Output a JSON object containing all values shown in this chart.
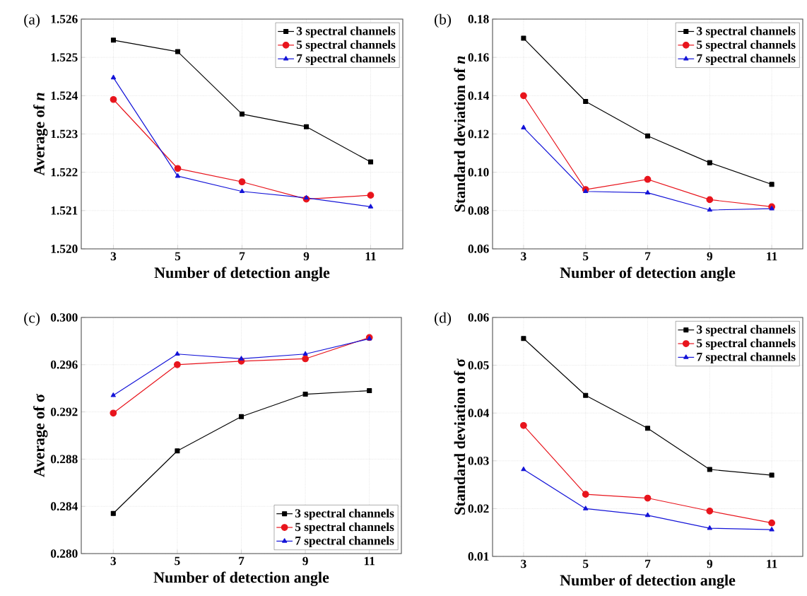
{
  "chart_data": [
    {
      "type": "line",
      "annotations": [
        "(a)"
      ],
      "xlabel": "Number of detection angle",
      "ylabel": "Average of *n*",
      "x": [
        3,
        5,
        7,
        9,
        11
      ],
      "xlim": [
        2,
        12
      ],
      "xticks": [
        3,
        5,
        7,
        9,
        11
      ],
      "ylim": [
        1.52,
        1.526
      ],
      "yticks": [
        {
          "value": 1.52,
          "label": "1.520"
        },
        {
          "value": 1.521,
          "label": "1.521"
        },
        {
          "value": 1.522,
          "label": "1.522"
        },
        {
          "value": 1.523,
          "label": "1.523"
        },
        {
          "value": 1.524,
          "label": "1.524"
        },
        {
          "value": 1.525,
          "label": "1.525"
        },
        {
          "value": 1.526,
          "label": "1.526"
        }
      ],
      "grid": true,
      "legend": "top right",
      "series": [
        {
          "name": "3 spectral channels",
          "color": "#000000",
          "marker": "square",
          "values": [
            1.52545,
            1.52515,
            1.52352,
            1.52319,
            1.52227
          ]
        },
        {
          "name": "5 spectral channels",
          "color": "#e8141c",
          "marker": "circle",
          "values": [
            1.5239,
            1.5221,
            1.52175,
            1.5213,
            1.5214
          ]
        },
        {
          "name": "7 spectral channels",
          "color": "#1414d8",
          "marker": "triangle",
          "values": [
            1.52447,
            1.5219,
            1.5215,
            1.52133,
            1.5211
          ]
        }
      ]
    },
    {
      "type": "line",
      "annotations": [
        "(b)"
      ],
      "xlabel": "Number of detection angle",
      "ylabel": "Standard deviation of *n*",
      "x": [
        3,
        5,
        7,
        9,
        11
      ],
      "xlim": [
        2,
        12
      ],
      "xticks": [
        3,
        5,
        7,
        9,
        11
      ],
      "ylim": [
        0.06,
        0.18
      ],
      "yticks": [
        {
          "value": 0.06,
          "label": "0.06"
        },
        {
          "value": 0.08,
          "label": "0.08"
        },
        {
          "value": 0.1,
          "label": "0.10"
        },
        {
          "value": 0.12,
          "label": "0.12"
        },
        {
          "value": 0.14,
          "label": "0.14"
        },
        {
          "value": 0.16,
          "label": "0.16"
        },
        {
          "value": 0.18,
          "label": "0.18"
        }
      ],
      "grid": true,
      "legend": "top right",
      "series": [
        {
          "name": "3 spectral channels",
          "color": "#000000",
          "marker": "square",
          "values": [
            0.17,
            0.137,
            0.119,
            0.105,
            0.0937
          ]
        },
        {
          "name": "5 spectral channels",
          "color": "#e8141c",
          "marker": "circle",
          "values": [
            0.14,
            0.091,
            0.0963,
            0.0857,
            0.082
          ]
        },
        {
          "name": "7 spectral channels",
          "color": "#1414d8",
          "marker": "triangle",
          "values": [
            0.1233,
            0.09,
            0.0893,
            0.0803,
            0.081
          ]
        }
      ]
    },
    {
      "type": "line",
      "annotations": [
        "(c)"
      ],
      "xlabel": "Number of detection angle",
      "ylabel": "Average of σ",
      "x": [
        3,
        5,
        7,
        9,
        11
      ],
      "xlim": [
        2,
        12
      ],
      "xticks": [
        3,
        5,
        7,
        9,
        11
      ],
      "ylim": [
        0.28,
        0.3
      ],
      "yticks": [
        {
          "value": 0.28,
          "label": "0.280"
        },
        {
          "value": 0.284,
          "label": "0.284"
        },
        {
          "value": 0.288,
          "label": "0.288"
        },
        {
          "value": 0.292,
          "label": "0.292"
        },
        {
          "value": 0.296,
          "label": "0.296"
        },
        {
          "value": 0.3,
          "label": "0.300"
        }
      ],
      "grid": true,
      "legend": "bottom right",
      "series": [
        {
          "name": "3 spectral channels",
          "color": "#000000",
          "marker": "square",
          "values": [
            0.2834,
            0.2887,
            0.2916,
            0.2935,
            0.2938
          ]
        },
        {
          "name": "5 spectral channels",
          "color": "#e8141c",
          "marker": "circle",
          "values": [
            0.2919,
            0.296,
            0.2963,
            0.2965,
            0.2983
          ]
        },
        {
          "name": "7 spectral channels",
          "color": "#1414d8",
          "marker": "triangle",
          "values": [
            0.2934,
            0.2969,
            0.2965,
            0.2969,
            0.2982
          ]
        }
      ]
    },
    {
      "type": "line",
      "annotations": [
        "(d)"
      ],
      "xlabel": "Number of detection angle",
      "ylabel": "Standard deviation of σ",
      "x": [
        3,
        5,
        7,
        9,
        11
      ],
      "xlim": [
        2,
        12
      ],
      "xticks": [
        3,
        5,
        7,
        9,
        11
      ],
      "ylim": [
        0.01,
        0.06
      ],
      "yticks": [
        {
          "value": 0.01,
          "label": "0.01"
        },
        {
          "value": 0.02,
          "label": "0.02"
        },
        {
          "value": 0.03,
          "label": "0.03"
        },
        {
          "value": 0.04,
          "label": "0.04"
        },
        {
          "value": 0.05,
          "label": "0.05"
        },
        {
          "value": 0.06,
          "label": "0.06"
        }
      ],
      "grid": true,
      "legend": "top right",
      "series": [
        {
          "name": "3 spectral channels",
          "color": "#000000",
          "marker": "square",
          "values": [
            0.0556,
            0.0437,
            0.0368,
            0.0282,
            0.027
          ]
        },
        {
          "name": "5 spectral channels",
          "color": "#e8141c",
          "marker": "circle",
          "values": [
            0.0374,
            0.023,
            0.0222,
            0.0195,
            0.017
          ]
        },
        {
          "name": "7 spectral channels",
          "color": "#1414d8",
          "marker": "triangle",
          "values": [
            0.0282,
            0.02,
            0.0186,
            0.0159,
            0.0156
          ]
        }
      ]
    }
  ]
}
